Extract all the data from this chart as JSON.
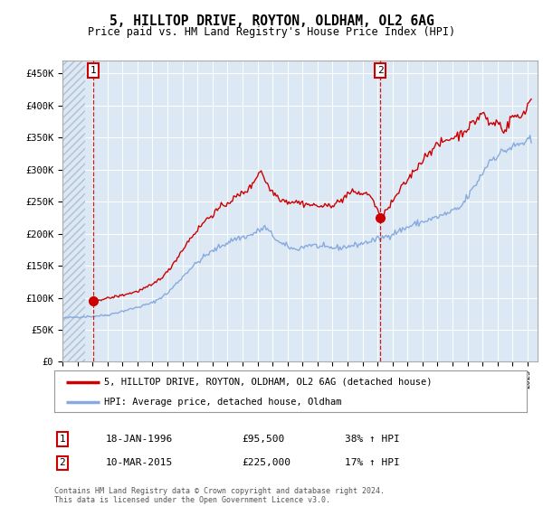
{
  "title": "5, HILLTOP DRIVE, ROYTON, OLDHAM, OL2 6AG",
  "subtitle": "Price paid vs. HM Land Registry's House Price Index (HPI)",
  "ylabel_ticks": [
    "£0",
    "£50K",
    "£100K",
    "£150K",
    "£200K",
    "£250K",
    "£300K",
    "£350K",
    "£400K",
    "£450K"
  ],
  "ylim": [
    0,
    470000
  ],
  "ytick_vals": [
    0,
    50000,
    100000,
    150000,
    200000,
    250000,
    300000,
    350000,
    400000,
    450000
  ],
  "sale1": {
    "date": "1996-01-18",
    "price": 95500,
    "label": "1",
    "note": "18-JAN-1996",
    "pct": "38% ↑ HPI"
  },
  "sale2": {
    "date": "2015-03-10",
    "price": 225000,
    "label": "2",
    "note": "10-MAR-2015",
    "pct": "17% ↑ HPI"
  },
  "line_color_property": "#cc0000",
  "line_color_hpi": "#88aadd",
  "legend_property": "5, HILLTOP DRIVE, ROYTON, OLDHAM, OL2 6AG (detached house)",
  "legend_hpi": "HPI: Average price, detached house, Oldham",
  "footer": "Contains HM Land Registry data © Crown copyright and database right 2024.\nThis data is licensed under the Open Government Licence v3.0.",
  "background_color": "#dce9f5",
  "annotation_box_color": "#cc0000",
  "dashed_line_color": "#cc0000",
  "hpi_anchors": {
    "1994.0": 68000,
    "1995.0": 70000,
    "1996.0": 71000,
    "1997.0": 73000,
    "1998.0": 79000,
    "1999.0": 85000,
    "2000.0": 92000,
    "2001.0": 107000,
    "2002.5": 145000,
    "2003.5": 165000,
    "2004.5": 180000,
    "2005.5": 192000,
    "2006.5": 197000,
    "2007.5": 210000,
    "2008.5": 185000,
    "2009.5": 175000,
    "2010.5": 183000,
    "2011.5": 178000,
    "2012.5": 178000,
    "2013.5": 182000,
    "2014.5": 188000,
    "2015.5": 195000,
    "2016.5": 205000,
    "2017.5": 215000,
    "2018.5": 222000,
    "2019.5": 230000,
    "2020.5": 240000,
    "2021.5": 275000,
    "2022.5": 315000,
    "2023.5": 330000,
    "2024.5": 340000,
    "2025.2": 345000
  },
  "prop_anchors": {
    "1996.0": 95500,
    "1997.0": 99000,
    "1998.0": 104000,
    "1999.0": 110000,
    "2000.0": 120000,
    "2001.0": 140000,
    "2002.5": 192000,
    "2003.5": 220000,
    "2004.5": 240000,
    "2005.5": 256000,
    "2006.5": 271000,
    "2007.2": 300000,
    "2007.8": 270000,
    "2008.5": 255000,
    "2009.0": 250000,
    "2009.5": 250000,
    "2010.5": 245000,
    "2011.5": 242000,
    "2012.5": 250000,
    "2013.0": 262000,
    "2013.5": 265000,
    "2014.0": 262000,
    "2014.5": 262000,
    "2015.2": 225000,
    "2015.8": 242000,
    "2016.5": 268000,
    "2017.5": 300000,
    "2018.5": 330000,
    "2019.5": 345000,
    "2020.5": 355000,
    "2021.5": 375000,
    "2022.0": 390000,
    "2022.5": 370000,
    "2023.0": 375000,
    "2023.5": 360000,
    "2024.0": 385000,
    "2024.5": 380000,
    "2025.0": 400000,
    "2025.2": 410000
  }
}
